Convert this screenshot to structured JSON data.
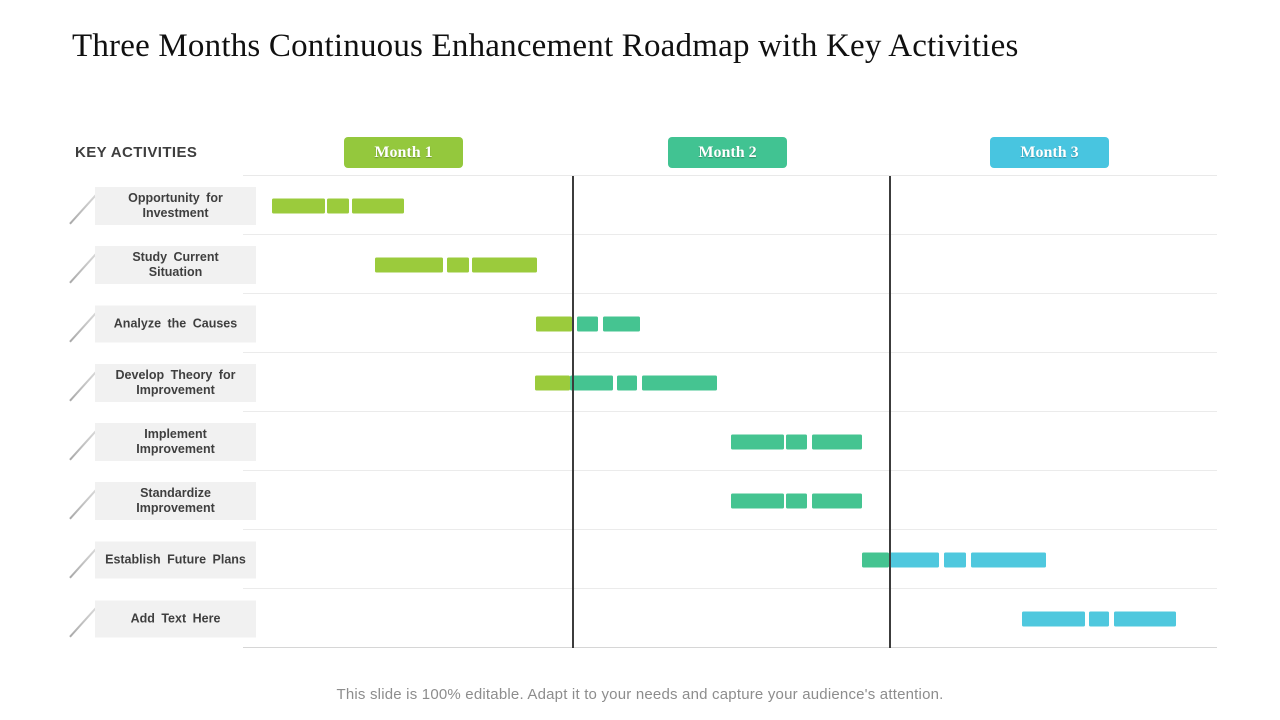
{
  "title": "Three Months Continuous Enhancement Roadmap with Key Activities",
  "key_activities_label": "KEY ACTIVITIES",
  "footer": "This slide is 100% editable. Adapt it to your needs and capture your audience's attention.",
  "months": [
    {
      "label": "Month 1",
      "color": "#94c83d"
    },
    {
      "label": "Month 2",
      "color": "#41c392"
    },
    {
      "label": "Month 3",
      "color": "#48c5e0"
    }
  ],
  "palette": {
    "green": "#9bcb3c",
    "teal": "#45c491",
    "cyan": "#4fc8de"
  },
  "chart_data": {
    "type": "gantt",
    "title": "Three Months Continuous Enhancement Roadmap with Key Activities",
    "x_axis": {
      "unit": "months",
      "labels": [
        "Month 1",
        "Month 2",
        "Month 3"
      ],
      "range": [
        0,
        3
      ]
    },
    "grid": "horizontal-row-lines",
    "dividers_pct": [
      33.74,
      66.36
    ],
    "rows": [
      {
        "label": "Opportunity for Investment",
        "span_months": [
          0.09,
          0.5
        ],
        "segments": [
          {
            "left_pct": 2.97,
            "width_pct": 5.44,
            "color": "green"
          },
          {
            "left_pct": 8.62,
            "width_pct": 2.26,
            "color": "green"
          },
          {
            "left_pct": 11.18,
            "width_pct": 5.33,
            "color": "green"
          }
        ]
      },
      {
        "label": "Study Current Situation",
        "span_months": [
          0.41,
          0.9
        ],
        "segments": [
          {
            "left_pct": 13.54,
            "width_pct": 6.97,
            "color": "green"
          },
          {
            "left_pct": 20.92,
            "width_pct": 2.26,
            "color": "green"
          },
          {
            "left_pct": 23.49,
            "width_pct": 6.67,
            "color": "green"
          }
        ]
      },
      {
        "label": "Analyze the Causes",
        "span_months": [
          0.9,
          1.22
        ],
        "segments": [
          {
            "left_pct": 30.05,
            "width_pct": 3.69,
            "color": "green"
          },
          {
            "left_pct": 34.26,
            "width_pct": 2.15,
            "color": "teal"
          },
          {
            "left_pct": 36.92,
            "width_pct": 3.79,
            "color": "teal"
          }
        ]
      },
      {
        "label": "Develop Theory for Improvement",
        "span_months": [
          0.9,
          1.46
        ],
        "segments": [
          {
            "left_pct": 29.95,
            "width_pct": 3.59,
            "color": "green"
          },
          {
            "left_pct": 33.54,
            "width_pct": 4.41,
            "color": "teal"
          },
          {
            "left_pct": 38.36,
            "width_pct": 2.05,
            "color": "teal"
          },
          {
            "left_pct": 40.92,
            "width_pct": 7.79,
            "color": "teal"
          }
        ]
      },
      {
        "label": "Implement Improvement",
        "span_months": [
          1.5,
          1.91
        ],
        "segments": [
          {
            "left_pct": 50.15,
            "width_pct": 5.44,
            "color": "teal"
          },
          {
            "left_pct": 55.79,
            "width_pct": 2.15,
            "color": "teal"
          },
          {
            "left_pct": 58.46,
            "width_pct": 5.13,
            "color": "teal"
          }
        ]
      },
      {
        "label": "Standardize Improvement",
        "span_months": [
          1.5,
          1.91
        ],
        "segments": [
          {
            "left_pct": 50.15,
            "width_pct": 5.44,
            "color": "teal"
          },
          {
            "left_pct": 55.79,
            "width_pct": 2.15,
            "color": "teal"
          },
          {
            "left_pct": 58.46,
            "width_pct": 5.13,
            "color": "teal"
          }
        ]
      },
      {
        "label": "Establish Future Plans",
        "span_months": [
          1.91,
          2.47
        ],
        "segments": [
          {
            "left_pct": 63.59,
            "width_pct": 2.77,
            "color": "teal"
          },
          {
            "left_pct": 66.36,
            "width_pct": 5.13,
            "color": "cyan"
          },
          {
            "left_pct": 72.0,
            "width_pct": 2.26,
            "color": "cyan"
          },
          {
            "left_pct": 74.77,
            "width_pct": 7.69,
            "color": "cyan"
          }
        ]
      },
      {
        "label": "Add Text Here",
        "span_months": [
          2.4,
          2.87
        ],
        "segments": [
          {
            "left_pct": 80.0,
            "width_pct": 6.46,
            "color": "cyan"
          },
          {
            "left_pct": 86.87,
            "width_pct": 2.05,
            "color": "cyan"
          },
          {
            "left_pct": 89.44,
            "width_pct": 6.36,
            "color": "cyan"
          }
        ]
      }
    ]
  }
}
